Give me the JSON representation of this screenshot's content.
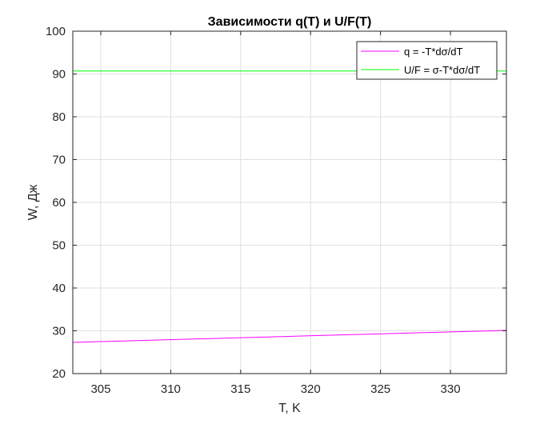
{
  "chart_data": {
    "type": "line",
    "title": "Зависимости q(T) и U/F(T)",
    "xlabel": "T, K",
    "ylabel": "W, Дж",
    "xlim": [
      303,
      334
    ],
    "ylim": [
      20,
      100
    ],
    "xticks": [
      305,
      310,
      315,
      320,
      325,
      330
    ],
    "yticks": [
      20,
      30,
      40,
      50,
      60,
      70,
      80,
      90,
      100
    ],
    "grid": true,
    "legend_location": "top-right",
    "series": [
      {
        "name": "q = -T*dσ/dT",
        "color": "#ff00ff",
        "x": [
          303,
          334
        ],
        "y": [
          27.3,
          30.1
        ]
      },
      {
        "name": "U/F = σ-T*dσ/dT",
        "color": "#00ff00",
        "x": [
          303,
          334
        ],
        "y": [
          90.7,
          90.7
        ]
      }
    ]
  }
}
